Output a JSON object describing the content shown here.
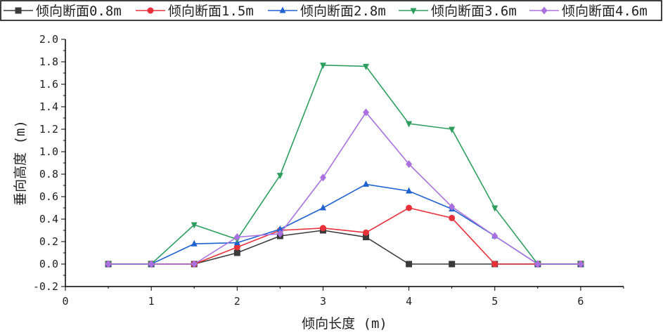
{
  "chart_data": {
    "type": "line",
    "xlabel": "倾向长度 (m)",
    "ylabel": "垂向高度 (m)",
    "xlim": [
      0,
      6.5
    ],
    "ylim": [
      -0.2,
      2.0
    ],
    "xticks": [
      "0",
      "1",
      "2",
      "3",
      "4",
      "5",
      "6"
    ],
    "yticks": [
      "-0.2",
      "0.0",
      "0.2",
      "0.4",
      "0.6",
      "0.8",
      "1.0",
      "1.2",
      "1.4",
      "1.6",
      "1.8",
      "2.0"
    ],
    "grid": false,
    "legend_position": "top",
    "x": [
      0.5,
      1,
      1.5,
      2,
      2.5,
      3,
      3.5,
      4,
      4.5,
      5,
      5.5,
      6
    ],
    "series": [
      {
        "name": "倾向断面0.8m",
        "color": "#3a3a3a",
        "marker": "square",
        "values": [
          0,
          0,
          0,
          0.1,
          0.25,
          0.3,
          0.24,
          0,
          0,
          0,
          0,
          0
        ]
      },
      {
        "name": "倾向断面1.5m",
        "color": "#e8303a",
        "marker": "circle",
        "values": [
          0,
          0,
          0,
          0.15,
          0.3,
          0.32,
          0.28,
          0.5,
          0.41,
          0,
          0,
          0
        ]
      },
      {
        "name": "倾向断面2.8m",
        "color": "#1f62d0",
        "marker": "triangle-up",
        "values": [
          0,
          0,
          0.18,
          0.19,
          0.31,
          0.5,
          0.71,
          0.65,
          0.49,
          0.25,
          0,
          0
        ]
      },
      {
        "name": "倾向断面3.6m",
        "color": "#2e9e60",
        "marker": "triangle-down",
        "values": [
          0,
          0,
          0.35,
          0.22,
          0.79,
          1.77,
          1.76,
          1.25,
          1.2,
          0.5,
          0,
          0
        ]
      },
      {
        "name": "倾向断面4.6m",
        "color": "#a970e0",
        "marker": "diamond",
        "values": [
          0,
          0,
          0,
          0.24,
          0.27,
          0.77,
          1.35,
          0.89,
          0.51,
          0.25,
          0,
          0
        ]
      }
    ]
  }
}
